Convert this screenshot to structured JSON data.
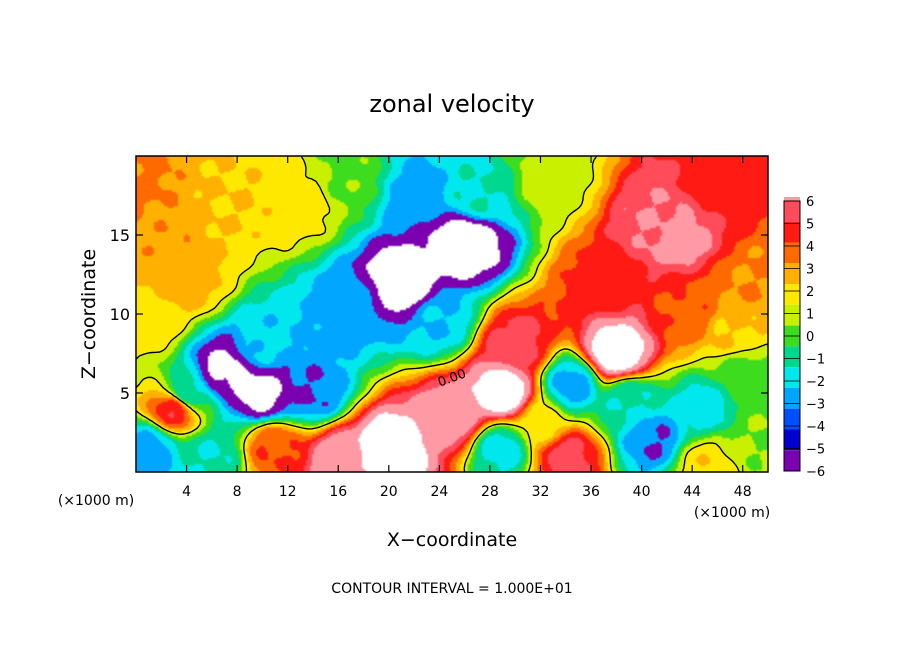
{
  "chart_data": {
    "type": "heatmap",
    "title": "zonal velocity",
    "xlabel": "X−coordinate",
    "ylabel": "Z−coordinate",
    "x_unit_left": "(×1000 m)",
    "x_unit_right": "(×1000 m)",
    "xlim": [
      0,
      50
    ],
    "ylim": [
      0,
      20
    ],
    "x_ticks": [
      4,
      8,
      12,
      16,
      20,
      24,
      28,
      32,
      36,
      40,
      44,
      48
    ],
    "y_ticks": [
      5,
      10,
      15
    ],
    "colorbar": {
      "ticks": [
        6,
        5,
        4,
        3,
        2,
        1,
        0,
        -1,
        -2,
        -3,
        -4,
        -5,
        -6
      ],
      "tick_labels": [
        "6",
        "5",
        "4",
        "3",
        "2",
        "1",
        "0",
        "−1",
        "−2",
        "−3",
        "−4",
        "−5",
        "−6"
      ],
      "colors": [
        "#ff9aa4",
        "#ff4b5a",
        "#ff1b14",
        "#ff6a00",
        "#ffb000",
        "#ffe800",
        "#c8f000",
        "#3ddc1e",
        "#00d890",
        "#00e8ee",
        "#00a6ff",
        "#0050ff",
        "#0000d0",
        "#7a00b0"
      ]
    },
    "contour_label": "0.00",
    "footer": "CONTOUR INTERVAL = 1.000E+01",
    "features": [
      {
        "x": 0,
        "z": 18,
        "v": 2.2
      },
      {
        "x": 2,
        "z": 15,
        "v": 1.8
      },
      {
        "x": 4,
        "z": 12,
        "v": 1.5
      },
      {
        "x": 1,
        "z": 9.5,
        "v": 0.6
      },
      {
        "x": 8,
        "z": 17,
        "v": 1.0
      },
      {
        "x": 13,
        "z": 17,
        "v": 0.6
      },
      {
        "x": 17,
        "z": 18.5,
        "v": -1.2
      },
      {
        "x": 22,
        "z": 17.5,
        "v": -4.5
      },
      {
        "x": 27,
        "z": 17.5,
        "v": -3.0
      },
      {
        "x": 33,
        "z": 18.5,
        "v": -0.5
      },
      {
        "x": 21,
        "z": 12,
        "v": -8.0
      },
      {
        "x": 26,
        "z": 14.5,
        "v": -8.0
      },
      {
        "x": 17,
        "z": 10.5,
        "v": -4.5
      },
      {
        "x": 24,
        "z": 9.5,
        "v": -4.0
      },
      {
        "x": 10,
        "z": 8,
        "v": -3.8
      },
      {
        "x": 7,
        "z": 6.5,
        "v": -7.0
      },
      {
        "x": 10,
        "z": 5,
        "v": -7.0
      },
      {
        "x": 14,
        "z": 5,
        "v": -5.0
      },
      {
        "x": 4,
        "z": 5,
        "v": -3.0
      },
      {
        "x": 3,
        "z": 4,
        "v": 3.8
      },
      {
        "x": 1,
        "z": 1.5,
        "v": -4.5
      },
      {
        "x": 6,
        "z": 1,
        "v": -3.0
      },
      {
        "x": 11,
        "z": 1.5,
        "v": 3.0
      },
      {
        "x": 20,
        "z": 1.5,
        "v": 8.0
      },
      {
        "x": 16,
        "z": 0.8,
        "v": 6.0
      },
      {
        "x": 25,
        "z": 3.5,
        "v": 6.0
      },
      {
        "x": 29,
        "z": 5,
        "v": 8.0
      },
      {
        "x": 30,
        "z": 8,
        "v": 4.5
      },
      {
        "x": 29,
        "z": 1.5,
        "v": -3.5
      },
      {
        "x": 32,
        "z": 3,
        "v": 0.5
      },
      {
        "x": 34.5,
        "z": 5.5,
        "v": -4.5
      },
      {
        "x": 34,
        "z": 1,
        "v": 4.5
      },
      {
        "x": 38,
        "z": 7.5,
        "v": 8.0
      },
      {
        "x": 41,
        "z": 2,
        "v": -5.0
      },
      {
        "x": 39,
        "z": 4.5,
        "v": -3.0
      },
      {
        "x": 45,
        "z": 4,
        "v": -3.5
      },
      {
        "x": 48,
        "z": 6,
        "v": -1.5
      },
      {
        "x": 37,
        "z": 12,
        "v": 3.5
      },
      {
        "x": 41,
        "z": 16,
        "v": 5.0
      },
      {
        "x": 43,
        "z": 15,
        "v": 5.5
      },
      {
        "x": 46,
        "z": 18,
        "v": 3.5
      },
      {
        "x": 49,
        "z": 12,
        "v": 2.0
      },
      {
        "x": 44,
        "z": 10,
        "v": 2.8
      },
      {
        "x": 47,
        "z": 9,
        "v": 1.0
      },
      {
        "x": 45,
        "z": 0.5,
        "v": 0.8
      },
      {
        "x": 49,
        "z": 2,
        "v": -1.0
      }
    ]
  }
}
